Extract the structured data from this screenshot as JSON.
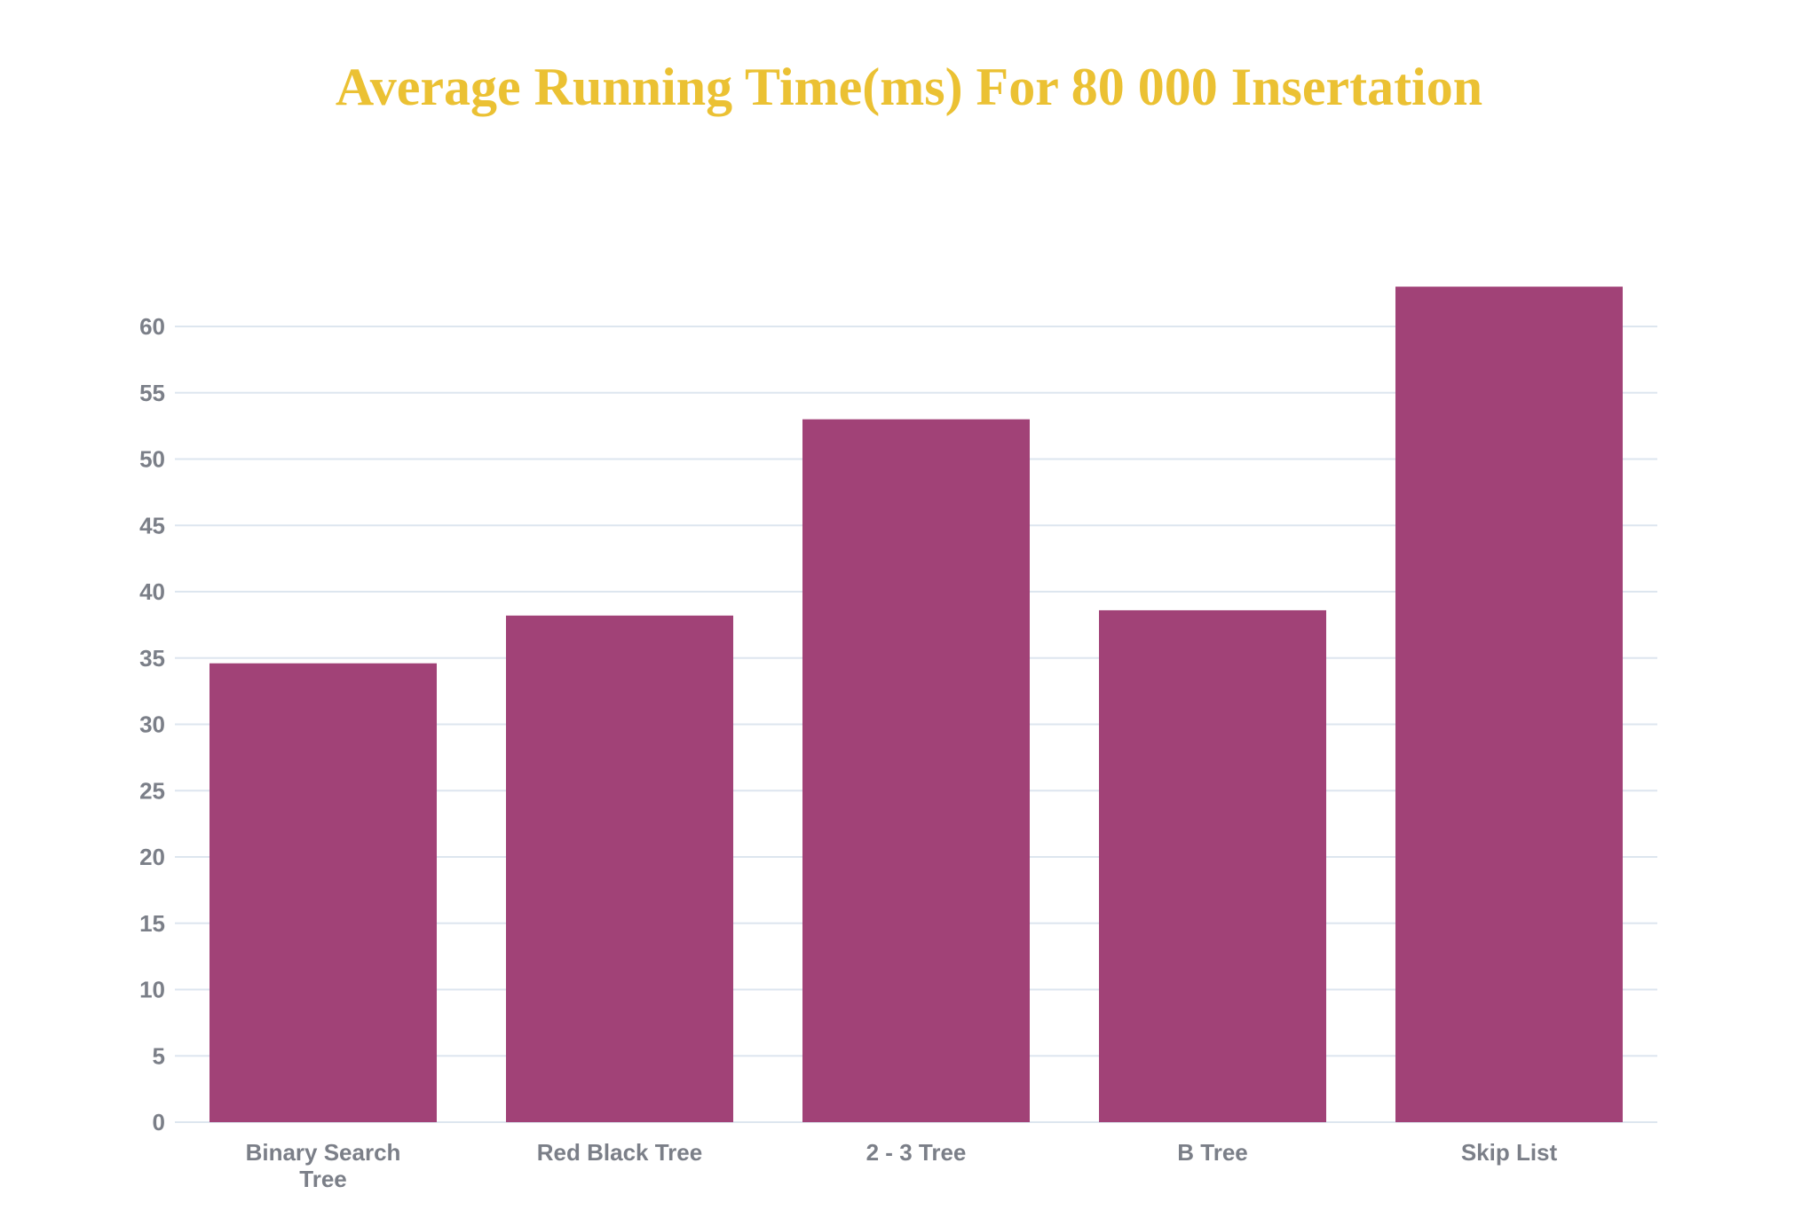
{
  "chart_data": {
    "type": "bar",
    "title": "Average Running Time(ms) For 80 000 Insertation",
    "xlabel": "",
    "ylabel": "",
    "categories": [
      "Binary Search Tree",
      "Red Black Tree",
      "2 - 3 Tree",
      "B Tree",
      "Skip List"
    ],
    "category_lines": [
      [
        "Binary Search",
        "Tree"
      ],
      [
        "Red Black Tree"
      ],
      [
        "2 - 3 Tree"
      ],
      [
        "B Tree"
      ],
      [
        "Skip List"
      ]
    ],
    "values": [
      34.6,
      38.2,
      53,
      38.6,
      63
    ],
    "ylim": [
      0,
      63
    ],
    "yticks": [
      0,
      5,
      10,
      15,
      20,
      25,
      30,
      35,
      40,
      45,
      50,
      55,
      60
    ],
    "grid": true,
    "legend": "none",
    "colors": {
      "bar": "#a14277",
      "title": "#ebc133",
      "grid": "#dde6ef",
      "tick_text": "#7b7f88"
    }
  }
}
